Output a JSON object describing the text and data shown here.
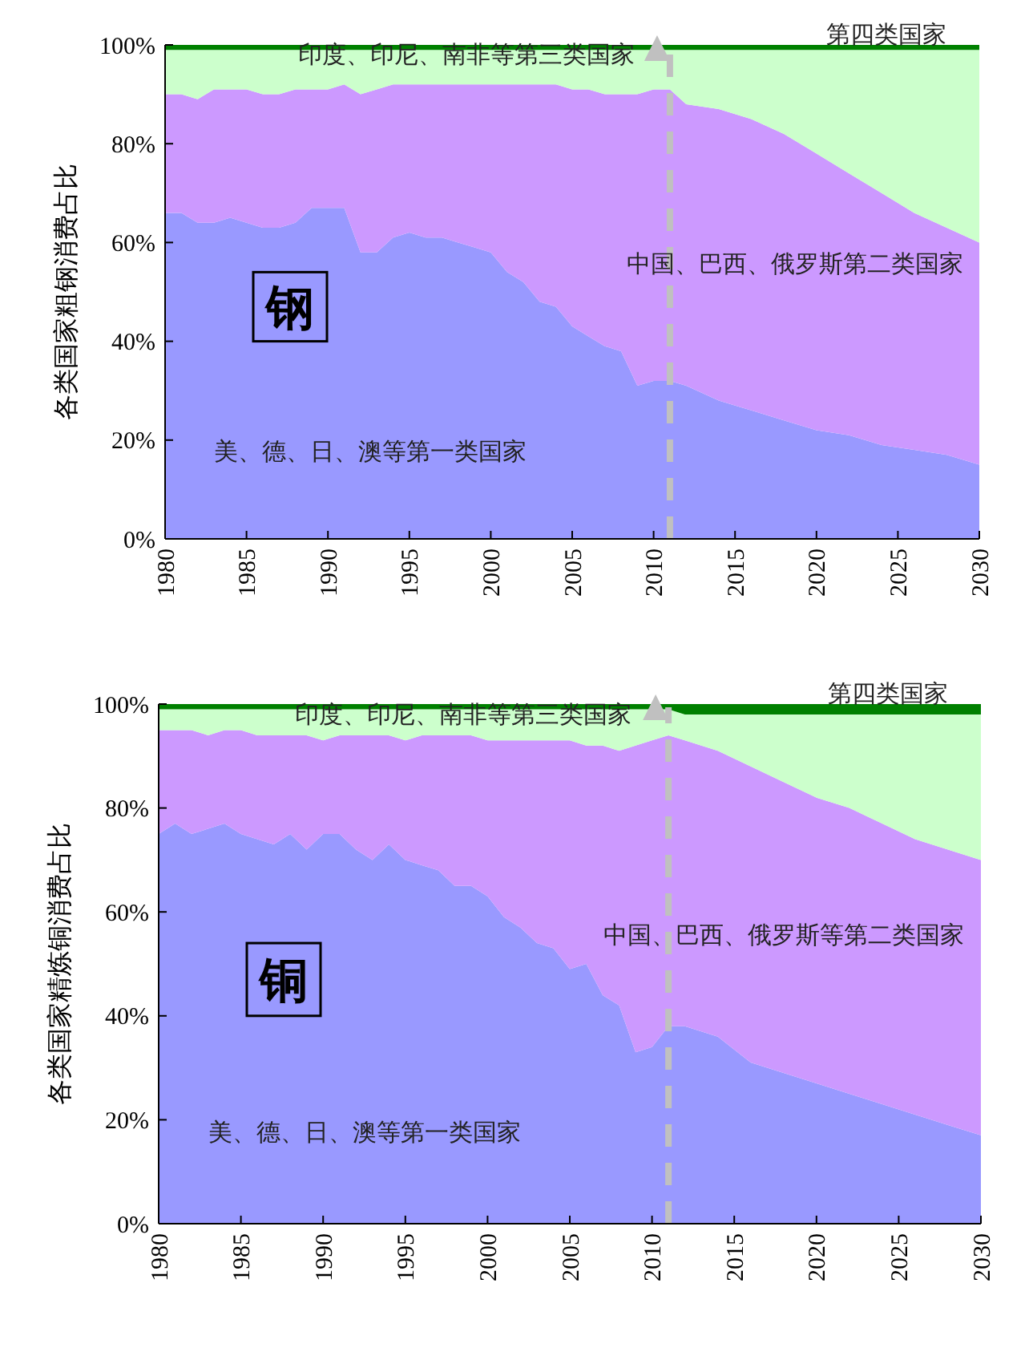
{
  "chart_data": [
    {
      "type": "area",
      "stacked": true,
      "title": "钢",
      "ylabel": "各类国家粗钢消费占比",
      "x": [
        1980,
        1981,
        1982,
        1983,
        1984,
        1985,
        1986,
        1987,
        1988,
        1989,
        1990,
        1991,
        1992,
        1993,
        1994,
        1995,
        1996,
        1997,
        1998,
        1999,
        2000,
        2001,
        2002,
        2003,
        2004,
        2005,
        2006,
        2007,
        2008,
        2009,
        2010,
        2011,
        2012,
        2014,
        2016,
        2018,
        2020,
        2022,
        2024,
        2026,
        2028,
        2030
      ],
      "xlim": [
        1980,
        2030
      ],
      "xticks": [
        1980,
        1985,
        1990,
        1995,
        2000,
        2005,
        2010,
        2015,
        2020,
        2025,
        2030
      ],
      "ylim": [
        0,
        100
      ],
      "yticks": [
        {
          "value": 0,
          "label": "0%"
        },
        {
          "value": 20,
          "label": "20%"
        },
        {
          "value": 40,
          "label": "40%"
        },
        {
          "value": 60,
          "label": "60%"
        },
        {
          "value": 80,
          "label": "80%"
        },
        {
          "value": 100,
          "label": "100%"
        }
      ],
      "series": [
        {
          "name": "美、德、日、澳等第一类国家",
          "color": "#9999ff",
          "values": [
            66,
            66,
            64,
            64,
            65,
            64,
            63,
            63,
            64,
            67,
            67,
            67,
            58,
            58,
            61,
            62,
            61,
            61,
            60,
            59,
            58,
            54,
            52,
            48,
            47,
            43,
            41,
            39,
            38,
            31,
            32,
            32,
            31,
            28,
            26,
            24,
            22,
            21,
            19,
            18,
            17,
            15
          ]
        },
        {
          "name": "中国、巴西、俄罗斯第二类国家",
          "color": "#cc99ff",
          "values": [
            24,
            24,
            25,
            27,
            26,
            27,
            27,
            27,
            27,
            24,
            24,
            25,
            32,
            33,
            31,
            30,
            31,
            31,
            32,
            33,
            34,
            38,
            40,
            44,
            45,
            48,
            50,
            51,
            52,
            59,
            59,
            59,
            57,
            59,
            59,
            58,
            56,
            53,
            51,
            48,
            46,
            45
          ]
        },
        {
          "name": "印度、印尼、南非等第三类国家",
          "color": "#ccffcc",
          "values": [
            9,
            9,
            10,
            8,
            8,
            8,
            9,
            9,
            8,
            8,
            8,
            7,
            9,
            8,
            7,
            7,
            7,
            7,
            7,
            7,
            7,
            7,
            7,
            7,
            7,
            8,
            8,
            9,
            9,
            9,
            8,
            8,
            11,
            12,
            14,
            17,
            21,
            25,
            29,
            33,
            36,
            39
          ]
        },
        {
          "name": "第四类国家",
          "color": "#008000",
          "values": [
            1,
            1,
            1,
            1,
            1,
            1,
            1,
            1,
            1,
            1,
            1,
            1,
            1,
            1,
            1,
            1,
            1,
            1,
            1,
            1,
            1,
            1,
            1,
            1,
            1,
            1,
            1,
            1,
            1,
            1,
            1,
            1,
            1,
            1,
            1,
            1,
            1,
            1,
            1,
            1,
            1,
            1
          ]
        }
      ],
      "ref_lines": [
        {
          "axis": "x",
          "value": 2011,
          "color": "#c0c0c0",
          "line_style": "dashed"
        }
      ]
    },
    {
      "type": "area",
      "stacked": true,
      "title": "铜",
      "ylabel": "各类国家精炼铜消费占比",
      "x": [
        1980,
        1981,
        1982,
        1983,
        1984,
        1985,
        1986,
        1987,
        1988,
        1989,
        1990,
        1991,
        1992,
        1993,
        1994,
        1995,
        1996,
        1997,
        1998,
        1999,
        2000,
        2001,
        2002,
        2003,
        2004,
        2005,
        2006,
        2007,
        2008,
        2009,
        2010,
        2011,
        2012,
        2014,
        2016,
        2018,
        2020,
        2022,
        2024,
        2026,
        2028,
        2030
      ],
      "xlim": [
        1980,
        2030
      ],
      "xticks": [
        1980,
        1985,
        1990,
        1995,
        2000,
        2005,
        2010,
        2015,
        2020,
        2025,
        2030
      ],
      "ylim": [
        0,
        100
      ],
      "yticks": [
        {
          "value": 0,
          "label": "0%"
        },
        {
          "value": 20,
          "label": "20%"
        },
        {
          "value": 40,
          "label": "40%"
        },
        {
          "value": 60,
          "label": "60%"
        },
        {
          "value": 80,
          "label": "80%"
        },
        {
          "value": 100,
          "label": "100%"
        }
      ],
      "series": [
        {
          "name": "美、德、日、澳等第一类国家",
          "color": "#9999ff",
          "values": [
            75,
            77,
            75,
            76,
            77,
            75,
            74,
            73,
            75,
            72,
            75,
            75,
            72,
            70,
            73,
            70,
            69,
            68,
            65,
            65,
            63,
            59,
            57,
            54,
            53,
            49,
            50,
            44,
            42,
            33,
            34,
            38,
            38,
            36,
            31,
            29,
            27,
            25,
            23,
            21,
            19,
            17
          ]
        },
        {
          "name": "中国、巴西、俄罗斯等第二类国家",
          "color": "#cc99ff",
          "values": [
            20,
            18,
            20,
            18,
            18,
            20,
            20,
            21,
            19,
            22,
            18,
            19,
            22,
            24,
            21,
            23,
            25,
            26,
            29,
            29,
            30,
            34,
            36,
            39,
            40,
            44,
            42,
            48,
            49,
            59,
            59,
            56,
            55,
            55,
            57,
            56,
            55,
            55,
            54,
            53,
            53,
            53
          ]
        },
        {
          "name": "印度、印尼、南非等第三类国家",
          "color": "#ccffcc",
          "values": [
            4,
            4,
            4,
            5,
            4,
            4,
            5,
            5,
            5,
            5,
            6,
            5,
            5,
            5,
            5,
            6,
            5,
            5,
            5,
            5,
            6,
            6,
            6,
            6,
            6,
            6,
            7,
            7,
            8,
            7,
            6,
            5,
            5,
            7,
            10,
            13,
            16,
            18,
            21,
            24,
            26,
            28
          ]
        },
        {
          "name": "第四类国家",
          "color": "#008000",
          "values": [
            1,
            1,
            1,
            1,
            1,
            1,
            1,
            1,
            1,
            1,
            1,
            1,
            1,
            1,
            1,
            1,
            1,
            1,
            1,
            1,
            1,
            1,
            1,
            1,
            1,
            1,
            1,
            1,
            1,
            1,
            1,
            1,
            2,
            2,
            2,
            2,
            2,
            2,
            2,
            2,
            2,
            2
          ]
        }
      ],
      "ref_lines": [
        {
          "axis": "x",
          "value": 2011,
          "color": "#c0c0c0",
          "line_style": "dashed"
        }
      ]
    }
  ]
}
